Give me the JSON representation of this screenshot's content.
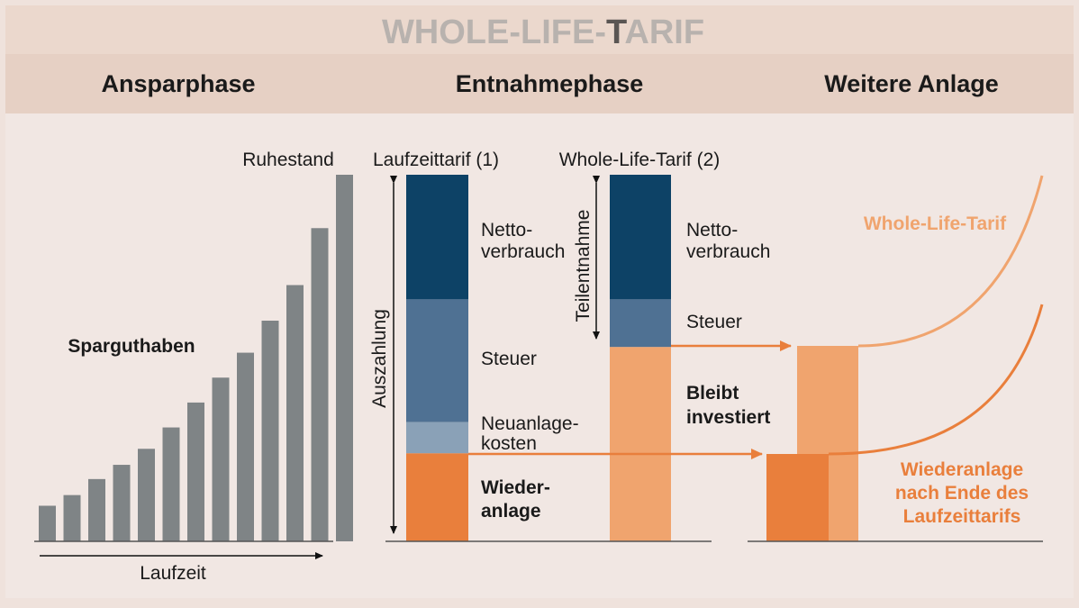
{
  "title": "WHOLE-LIFE-TARIF",
  "phases": {
    "savings": "Ansparphase",
    "withdrawal": "Entnahmephase",
    "further": "Weitere Anlage"
  },
  "savings_panel": {
    "series_label": "Sparguthaben",
    "top_label": "Ruhestand",
    "x_label": "Laufzeit",
    "bar_values": [
      1.0,
      1.3,
      1.75,
      2.15,
      2.6,
      3.2,
      3.9,
      4.6,
      5.3,
      6.2,
      7.2,
      8.8,
      10.3
    ]
  },
  "withdrawal_panel": {
    "col1_title": "Laufzeittarif (1)",
    "col2_title": "Whole-Life-Tarif (2)",
    "vertical_label_1": "Auszahlung",
    "vertical_label_2": "Teilentnahme",
    "segments_1": [
      {
        "label": "Netto-\nverbrauch",
        "color": "#0d4266",
        "share": 0.34
      },
      {
        "label": "Steuer",
        "color": "#4f7193",
        "share": 0.335
      },
      {
        "label": "Neuanlage-\nkosten",
        "color": "#8aa1b7",
        "share": 0.085
      },
      {
        "label": "Wieder-\nanlage",
        "color": "#e97f3c",
        "share": 0.24
      }
    ],
    "segments_2": [
      {
        "label": "Netto-\nverbrauch",
        "color": "#0d4266",
        "share": 0.34
      },
      {
        "label": "Steuer",
        "color": "#4f7193",
        "share": 0.13
      },
      {
        "label": "Bleibt\ninvestiert",
        "color": "#f0a46e",
        "share": 0.53
      }
    ]
  },
  "further_panel": {
    "curve_label_1": "Whole-Life-Tarif",
    "curve_label_2": "Wiederanlage\nnach Ende des\nLaufzeittarifs"
  },
  "colors": {
    "background": "#efe2dc",
    "title_band": "#ebd8cd",
    "header_band": "#e6d0c4",
    "bar_gray": "#7f8486",
    "dark_blue": "#0d4266",
    "mid_blue": "#4f7193",
    "light_blue": "#8aa1b7",
    "orange_dark": "#e97f3c",
    "orange_light": "#f0a46e",
    "title_gray": "#b8b2ae",
    "title_dark": "#5a5553"
  }
}
